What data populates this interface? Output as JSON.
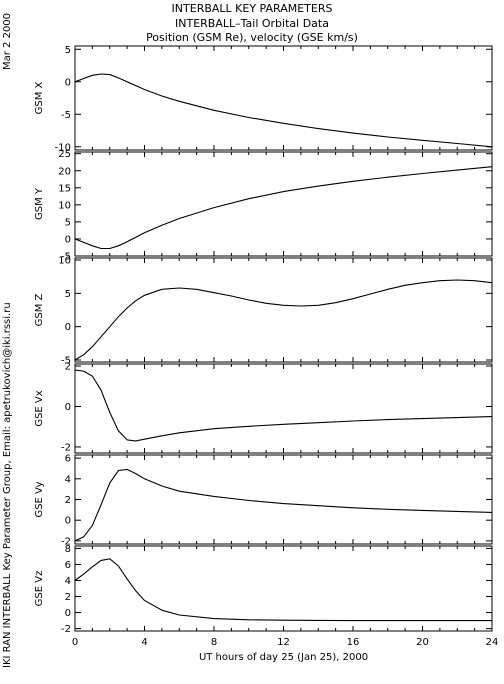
{
  "header": {
    "title_line1": "INTERBALL KEY PARAMETERS",
    "title_line2": "INTERBALL–Tail Orbital Data",
    "title_line3": "Position (GSM Re), velocity (GSE km/s)"
  },
  "side_date": "Mar  2 2000",
  "side_credit": "IKI RAN INTERBALL Key Parameter Group, Email: apetrukovich@iki.rssi.ru",
  "chart_data": {
    "type": "line",
    "title": "Position (GSM Re), velocity (GSE km/s)",
    "xlabel": "UT hours of day  25 (Jan 25), 2000",
    "xlim": [
      0,
      24
    ],
    "xticks": [
      0,
      4,
      8,
      12,
      16,
      20,
      24
    ],
    "grid": false,
    "panels": [
      {
        "ylabel": "GSM X",
        "ylim": [
          -10.5,
          5.5
        ],
        "yticks": [
          -10,
          -5,
          0,
          5
        ],
        "x": [
          0,
          0.5,
          1,
          1.5,
          2,
          2.5,
          3,
          4,
          5,
          6,
          8,
          10,
          12,
          14,
          16,
          18,
          20,
          22,
          24
        ],
        "y": [
          0,
          0.5,
          1.0,
          1.2,
          1.1,
          0.6,
          0,
          -1.2,
          -2.2,
          -3.0,
          -4.4,
          -5.5,
          -6.4,
          -7.2,
          -7.9,
          -8.5,
          -9.0,
          -9.5,
          -10.0
        ]
      },
      {
        "ylabel": "GSM Y",
        "ylim": [
          -5,
          25.5
        ],
        "yticks": [
          -5,
          0,
          5,
          10,
          15,
          20,
          25
        ],
        "x": [
          0,
          0.5,
          1,
          1.5,
          2,
          2.5,
          3,
          4,
          5,
          6,
          8,
          10,
          12,
          14,
          16,
          18,
          20,
          22,
          24
        ],
        "y": [
          0,
          -1.0,
          -2.0,
          -2.8,
          -2.8,
          -2.0,
          -0.8,
          1.8,
          4.0,
          6.0,
          9.2,
          11.8,
          13.9,
          15.5,
          16.9,
          18.1,
          19.2,
          20.2,
          21.2
        ]
      },
      {
        "ylabel": "GSM Z",
        "ylim": [
          -5.3,
          10.3
        ],
        "yticks": [
          -5,
          0,
          5,
          10
        ],
        "x": [
          0,
          0.5,
          1,
          1.5,
          2,
          2.5,
          3,
          3.5,
          4,
          5,
          6,
          7,
          8,
          9,
          10,
          11,
          12,
          13,
          14,
          15,
          16,
          17,
          18,
          19,
          20,
          21,
          22,
          23,
          24
        ],
        "y": [
          -5.0,
          -4.2,
          -3.0,
          -1.5,
          0,
          1.5,
          2.8,
          3.9,
          4.7,
          5.6,
          5.8,
          5.6,
          5.1,
          4.6,
          4.0,
          3.5,
          3.2,
          3.1,
          3.2,
          3.6,
          4.2,
          4.9,
          5.6,
          6.2,
          6.6,
          6.9,
          7.0,
          6.9,
          6.6
        ]
      },
      {
        "ylabel": "GSE Vx",
        "ylim": [
          -2.3,
          2.1
        ],
        "yticks": [
          -2,
          0,
          2
        ],
        "x": [
          0,
          0.5,
          1,
          1.5,
          2,
          2.5,
          3,
          3.5,
          4,
          5,
          6,
          8,
          10,
          12,
          14,
          16,
          18,
          20,
          22,
          24
        ],
        "y": [
          1.8,
          1.75,
          1.5,
          0.8,
          -0.3,
          -1.2,
          -1.65,
          -1.7,
          -1.62,
          -1.45,
          -1.3,
          -1.1,
          -0.98,
          -0.88,
          -0.8,
          -0.72,
          -0.65,
          -0.6,
          -0.55,
          -0.5
        ]
      },
      {
        "ylabel": "GSE Vy",
        "ylim": [
          -2.3,
          6.3
        ],
        "yticks": [
          -2,
          0,
          2,
          4,
          6
        ],
        "x": [
          0,
          0.5,
          1,
          1.5,
          2,
          2.5,
          3,
          3.5,
          4,
          5,
          6,
          8,
          10,
          12,
          14,
          16,
          18,
          20,
          22,
          24
        ],
        "y": [
          -2.0,
          -1.6,
          -0.5,
          1.5,
          3.6,
          4.8,
          4.9,
          4.5,
          4.0,
          3.3,
          2.8,
          2.3,
          1.9,
          1.6,
          1.4,
          1.2,
          1.05,
          0.95,
          0.85,
          0.75
        ]
      },
      {
        "ylabel": "GSE Vz",
        "ylim": [
          -2.3,
          8.3
        ],
        "yticks": [
          -2,
          0,
          2,
          4,
          6,
          8
        ],
        "x": [
          0,
          0.5,
          1,
          1.5,
          2,
          2.5,
          3,
          3.5,
          4,
          5,
          6,
          8,
          10,
          12,
          14,
          16,
          18,
          20,
          22,
          24
        ],
        "y": [
          4.0,
          4.8,
          5.7,
          6.5,
          6.7,
          5.8,
          4.2,
          2.7,
          1.5,
          0.3,
          -0.3,
          -0.75,
          -0.9,
          -0.95,
          -0.98,
          -1.0,
          -1.0,
          -1.0,
          -1.0,
          -1.0
        ]
      }
    ]
  }
}
